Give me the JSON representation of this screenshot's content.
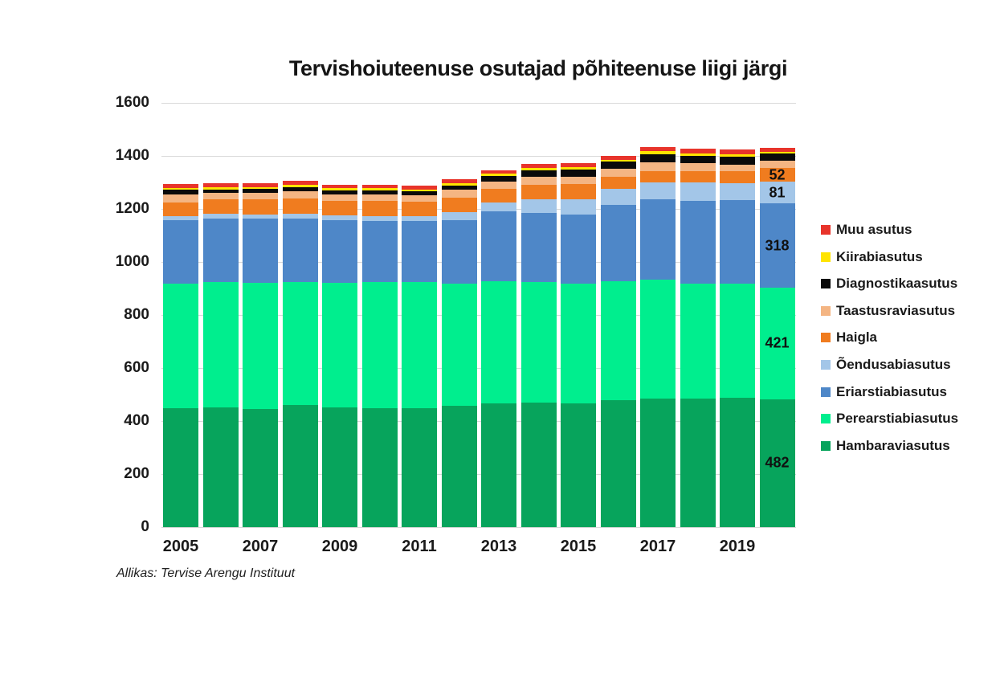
{
  "title": "Tervishoiuteenuse osutajad põhiteenuse liigi järgi",
  "source": "Allikas: Tervise Arengu Instituut",
  "axes": {
    "yticks": [
      "0",
      "200",
      "400",
      "600",
      "800",
      "1000",
      "1200",
      "1400",
      "1600"
    ],
    "xticks": [
      "2005",
      "2007",
      "2009",
      "2011",
      "2013",
      "2015",
      "2017",
      "2019"
    ]
  },
  "legend": {
    "position": "right",
    "items": [
      {
        "label": "Muu asutus",
        "color": "#e8342b"
      },
      {
        "label": "Kiirabiasutus",
        "color": "#ffe400"
      },
      {
        "label": "Diagnostikaasutus",
        "color": "#0a0a0a"
      },
      {
        "label": "Taastusraviasutus",
        "color": "#f4b583"
      },
      {
        "label": "Haigla",
        "color": "#f07c1f"
      },
      {
        "label": "Õendusabiasutus",
        "color": "#a3c6e8"
      },
      {
        "label": "Eriarstiabiasutus",
        "color": "#4e87c8"
      },
      {
        "label": "Perearstiabiasutus",
        "color": "#00ee8e"
      },
      {
        "label": "Hambaraviasutus",
        "color": "#07a45c"
      }
    ]
  },
  "chart_data": {
    "type": "bar",
    "stacked": true,
    "title": "Tervishoiuteenuse osutajad põhiteenuse liigi järgi",
    "xlabel": "",
    "ylabel": "",
    "ylim": [
      0,
      1600
    ],
    "ytick_step": 200,
    "grid": "horizontal",
    "legend_position": "right",
    "categories": [
      2005,
      2006,
      2007,
      2008,
      2009,
      2010,
      2011,
      2012,
      2013,
      2014,
      2015,
      2016,
      2017,
      2018,
      2019,
      2020
    ],
    "series": [
      {
        "name": "Hambaraviasutus",
        "color": "#07a45c",
        "values": [
          448,
          452,
          444,
          461,
          452,
          448,
          450,
          458,
          468,
          471,
          468,
          478,
          485,
          485,
          488,
          482
        ]
      },
      {
        "name": "Perearstiabiasutus",
        "color": "#00ee8e",
        "values": [
          471,
          473,
          478,
          464,
          470,
          477,
          475,
          459,
          459,
          454,
          451,
          449,
          447,
          434,
          429,
          421
        ]
      },
      {
        "name": "Eriarstiabiasutus",
        "color": "#4e87c8",
        "values": [
          240,
          240,
          241,
          240,
          237,
          231,
          230,
          242,
          263,
          260,
          261,
          288,
          303,
          311,
          316,
          318
        ]
      },
      {
        "name": "Õendusabiasutus",
        "color": "#a3c6e8",
        "values": [
          15,
          18,
          17,
          18,
          18,
          18,
          18,
          28,
          33,
          50,
          57,
          60,
          64,
          69,
          63,
          81
        ]
      },
      {
        "name": "Haigla",
        "color": "#f07c1f",
        "values": [
          51,
          54,
          56,
          57,
          53,
          56,
          54,
          56,
          53,
          56,
          57,
          45,
          43,
          44,
          46,
          52
        ]
      },
      {
        "name": "Taastusraviasutus",
        "color": "#f4b583",
        "values": [
          30,
          23,
          25,
          28,
          25,
          25,
          25,
          30,
          28,
          30,
          27,
          32,
          35,
          29,
          25,
          28
        ]
      },
      {
        "name": "Diagnostikaasutus",
        "color": "#0a0a0a",
        "values": [
          17,
          14,
          15,
          15,
          15,
          15,
          16,
          16,
          20,
          24,
          26,
          26,
          30,
          28,
          30,
          26
        ]
      },
      {
        "name": "Kiirabiasutus",
        "color": "#ffe400",
        "values": [
          7,
          7,
          7,
          7,
          8,
          8,
          6,
          7,
          10,
          10,
          10,
          8,
          10,
          10,
          10,
          8
        ]
      },
      {
        "name": "Muu asutus",
        "color": "#e8342b",
        "values": [
          15,
          15,
          15,
          16,
          13,
          13,
          14,
          15,
          12,
          14,
          15,
          14,
          17,
          17,
          17,
          15
        ]
      }
    ],
    "value_labels": {
      "category": 2020,
      "entries": [
        {
          "series": "Haigla",
          "label": "52"
        },
        {
          "series": "Õendusabiasutus",
          "label": "81"
        },
        {
          "series": "Eriarstiabiasutus",
          "label": "318"
        },
        {
          "series": "Perearstiabiasutus",
          "label": "421"
        },
        {
          "series": "Hambaraviasutus",
          "label": "482"
        }
      ]
    }
  }
}
